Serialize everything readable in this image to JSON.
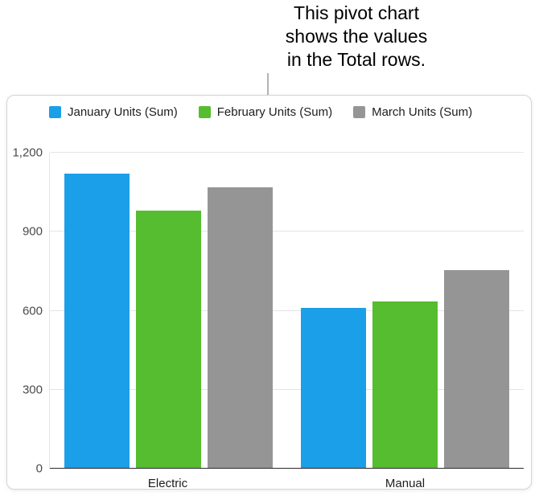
{
  "annotation": {
    "lines": [
      "This pivot chart",
      "shows the values",
      "in the Total rows."
    ]
  },
  "colors": {
    "january_blue": "#1B9FE9",
    "february_green": "#55BD2F",
    "march_gray": "#959595",
    "gridline": "#E4E4E4",
    "axis": "#2B2B2B"
  },
  "chart_data": {
    "type": "bar",
    "categories": [
      "Electric",
      "Manual"
    ],
    "series": [
      {
        "name": "January Units (Sum)",
        "color": "#1B9FE9",
        "values": [
          1120,
          610
        ]
      },
      {
        "name": "February Units (Sum)",
        "color": "#55BD2F",
        "values": [
          980,
          635
        ]
      },
      {
        "name": "March Units (Sum)",
        "color": "#959595",
        "values": [
          1070,
          755
        ]
      }
    ],
    "ylim": [
      0,
      1200
    ],
    "yticks": [
      0,
      300,
      600,
      900,
      1200
    ],
    "ytick_labels": [
      "0",
      "300",
      "600",
      "900",
      "1,200"
    ],
    "grid": true,
    "legend_position": "top"
  }
}
